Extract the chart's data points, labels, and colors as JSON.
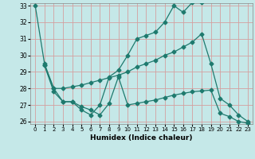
{
  "xlabel": "Humidex (Indice chaleur)",
  "bg_color": "#c5e8e8",
  "grid_color": "#d4a0a0",
  "line_color": "#1e7a6e",
  "xlim": [
    -0.5,
    23.5
  ],
  "ylim": [
    25.85,
    33.15
  ],
  "yticks": [
    26,
    27,
    28,
    29,
    30,
    31,
    32,
    33
  ],
  "xticks": [
    0,
    1,
    2,
    3,
    4,
    5,
    6,
    7,
    8,
    9,
    10,
    11,
    12,
    13,
    14,
    15,
    16,
    17,
    18,
    19,
    20,
    21,
    22,
    23
  ],
  "s1_x": [
    0,
    1,
    2,
    3,
    4,
    5,
    6,
    7,
    8,
    9,
    10,
    11,
    12,
    13,
    14,
    15,
    16,
    17,
    18
  ],
  "s1_y": [
    33.0,
    29.5,
    28.0,
    27.2,
    27.2,
    26.7,
    26.4,
    27.0,
    28.7,
    29.1,
    30.0,
    31.0,
    31.2,
    31.4,
    32.0,
    33.0,
    32.6,
    33.2,
    33.2
  ],
  "s2_x": [
    1,
    2,
    3,
    4,
    5,
    6,
    7,
    8,
    9,
    10,
    11,
    12,
    13,
    14,
    15,
    16,
    17,
    18,
    19,
    20,
    21,
    22,
    23
  ],
  "s2_y": [
    29.4,
    28.0,
    28.0,
    28.1,
    28.2,
    28.35,
    28.5,
    28.65,
    28.8,
    29.0,
    29.3,
    29.5,
    29.7,
    30.0,
    30.2,
    30.5,
    30.8,
    31.3,
    29.5,
    27.4,
    27.0,
    26.4,
    26.0
  ],
  "s3_x": [
    1,
    2,
    3,
    4,
    5,
    6,
    7,
    8,
    9,
    10,
    11,
    12,
    13,
    14,
    15,
    16,
    17,
    18,
    19,
    20,
    21,
    22,
    23
  ],
  "s3_y": [
    29.4,
    27.8,
    27.2,
    27.2,
    26.9,
    26.7,
    26.4,
    27.1,
    28.7,
    27.0,
    27.1,
    27.2,
    27.3,
    27.45,
    27.6,
    27.7,
    27.8,
    27.85,
    27.9,
    26.5,
    26.3,
    26.0,
    25.9
  ]
}
